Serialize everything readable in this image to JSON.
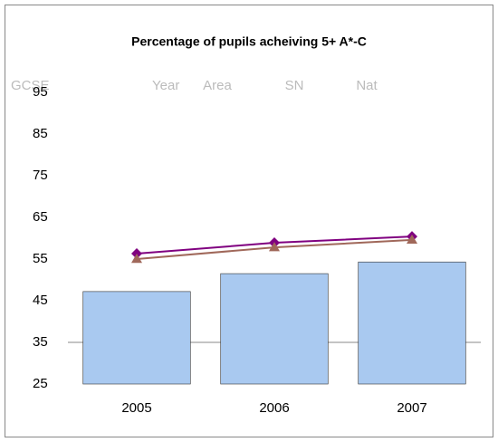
{
  "chart_data": {
    "type": "bar_line",
    "title": "Percentage of pupils acheiving 5+ A*-C",
    "row_label": "GCSE",
    "x_label": "Year",
    "categories": [
      "2005",
      "2006",
      "2007"
    ],
    "series": [
      {
        "name": "Area",
        "type": "bar",
        "color": "#a9c9f0",
        "values": [
          47.2,
          51.5,
          54.3
        ]
      },
      {
        "name": "SN",
        "type": "line",
        "marker": "diamond",
        "color": "#800080",
        "values": [
          56.3,
          58.9,
          60.4
        ]
      },
      {
        "name": "Nat",
        "type": "line",
        "marker": "triangle",
        "color": "#a0685a",
        "values": [
          55,
          57.8,
          59.6
        ]
      }
    ],
    "ylim": [
      25,
      95
    ],
    "yticks": [
      25,
      35,
      45,
      55,
      65,
      75,
      85,
      95
    ],
    "axis_crossing": 35
  }
}
